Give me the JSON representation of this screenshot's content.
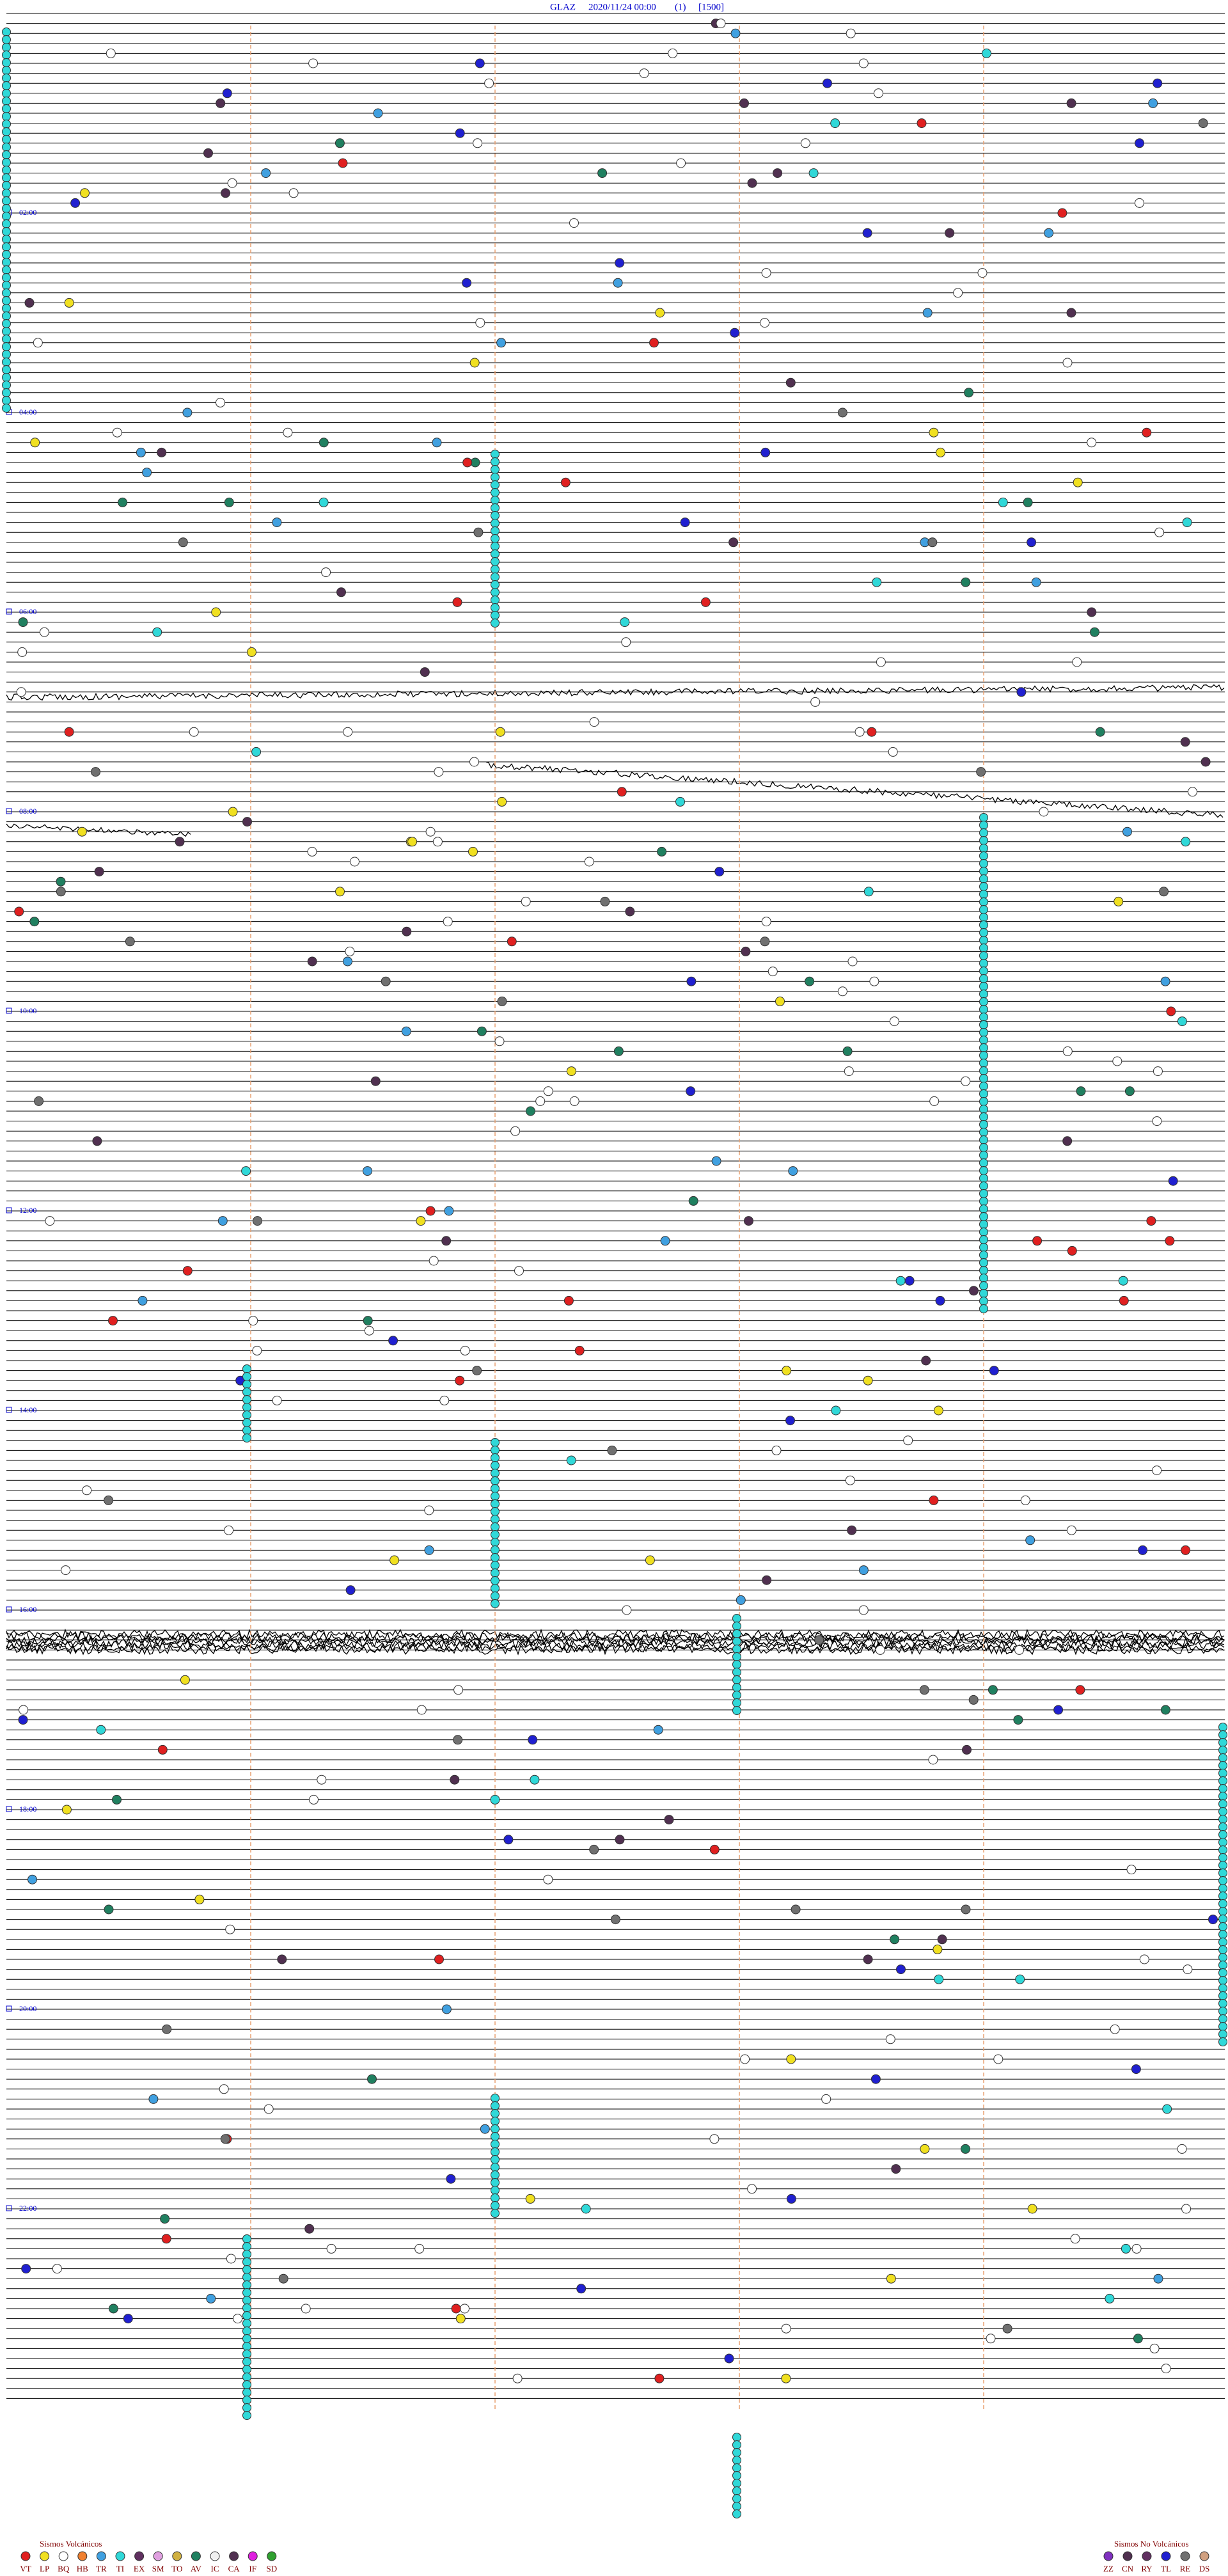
{
  "header": {
    "station": "GLAZ",
    "datetime": "2020/11/24 00:00",
    "channel": "(1)",
    "scale": "[1500]"
  },
  "time_labels": [
    "02:00",
    "04:00",
    "06:00",
    "08:00",
    "10:00",
    "12:00",
    "14:00",
    "16:00",
    "18:00",
    "20:00",
    "22:00"
  ],
  "legend_volcanic": {
    "title": "Sismos Volcánicos",
    "codes": [
      "VT",
      "LP",
      "BQ",
      "HB",
      "TR",
      "TI",
      "EX",
      "SM",
      "TO",
      "AV",
      "IC",
      "CA",
      "IF",
      "SD"
    ]
  },
  "legend_non_volcanic": {
    "title": "Sismos No Volcánicos",
    "codes": [
      "ZZ",
      "CN",
      "RY",
      "TL",
      "RE",
      "DS"
    ]
  }
}
